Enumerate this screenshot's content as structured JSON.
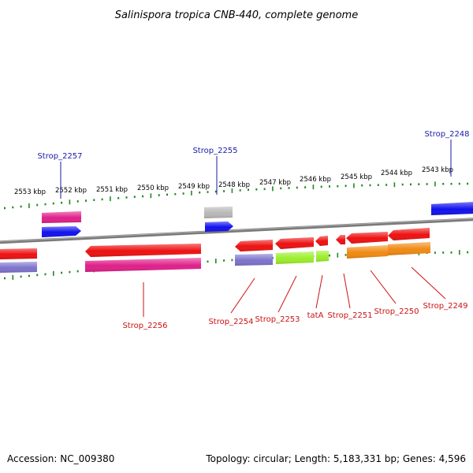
{
  "title": "Salinispora tropica CNB-440, complete genome",
  "accession": "Accession: NC_009380",
  "summary": "Topology: circular; Length: 5,183,331 bp; Genes: 4,596",
  "colors": {
    "backbone": "#7a7a7a",
    "tick": "#228822",
    "plus_label": "#1a1aaa",
    "minus_label": "#cc1111",
    "red": "#ee1111",
    "magenta": "#e0208a",
    "blue": "#1111ee",
    "gray": "#b8b8b8",
    "purple": "#7d73cc",
    "lime": "#9cee2a",
    "orange": "#f08a12"
  },
  "kbp_labels": [
    "2553 kbp",
    "2552 kbp",
    "2551 kbp",
    "2550 kbp",
    "2549 kbp",
    "2548 kbp",
    "2547 kbp",
    "2546 kbp",
    "2545 kbp",
    "2544 kbp",
    "2543 kbp"
  ],
  "gene_labels_plus": [
    "Strop_2257",
    "Strop_2255",
    "Strop_2248"
  ],
  "gene_labels_minus": [
    "Strop_2256",
    "Strop_2254",
    "Strop_2253",
    "tatA",
    "Strop_2251",
    "Strop_2250",
    "Strop_2249"
  ]
}
